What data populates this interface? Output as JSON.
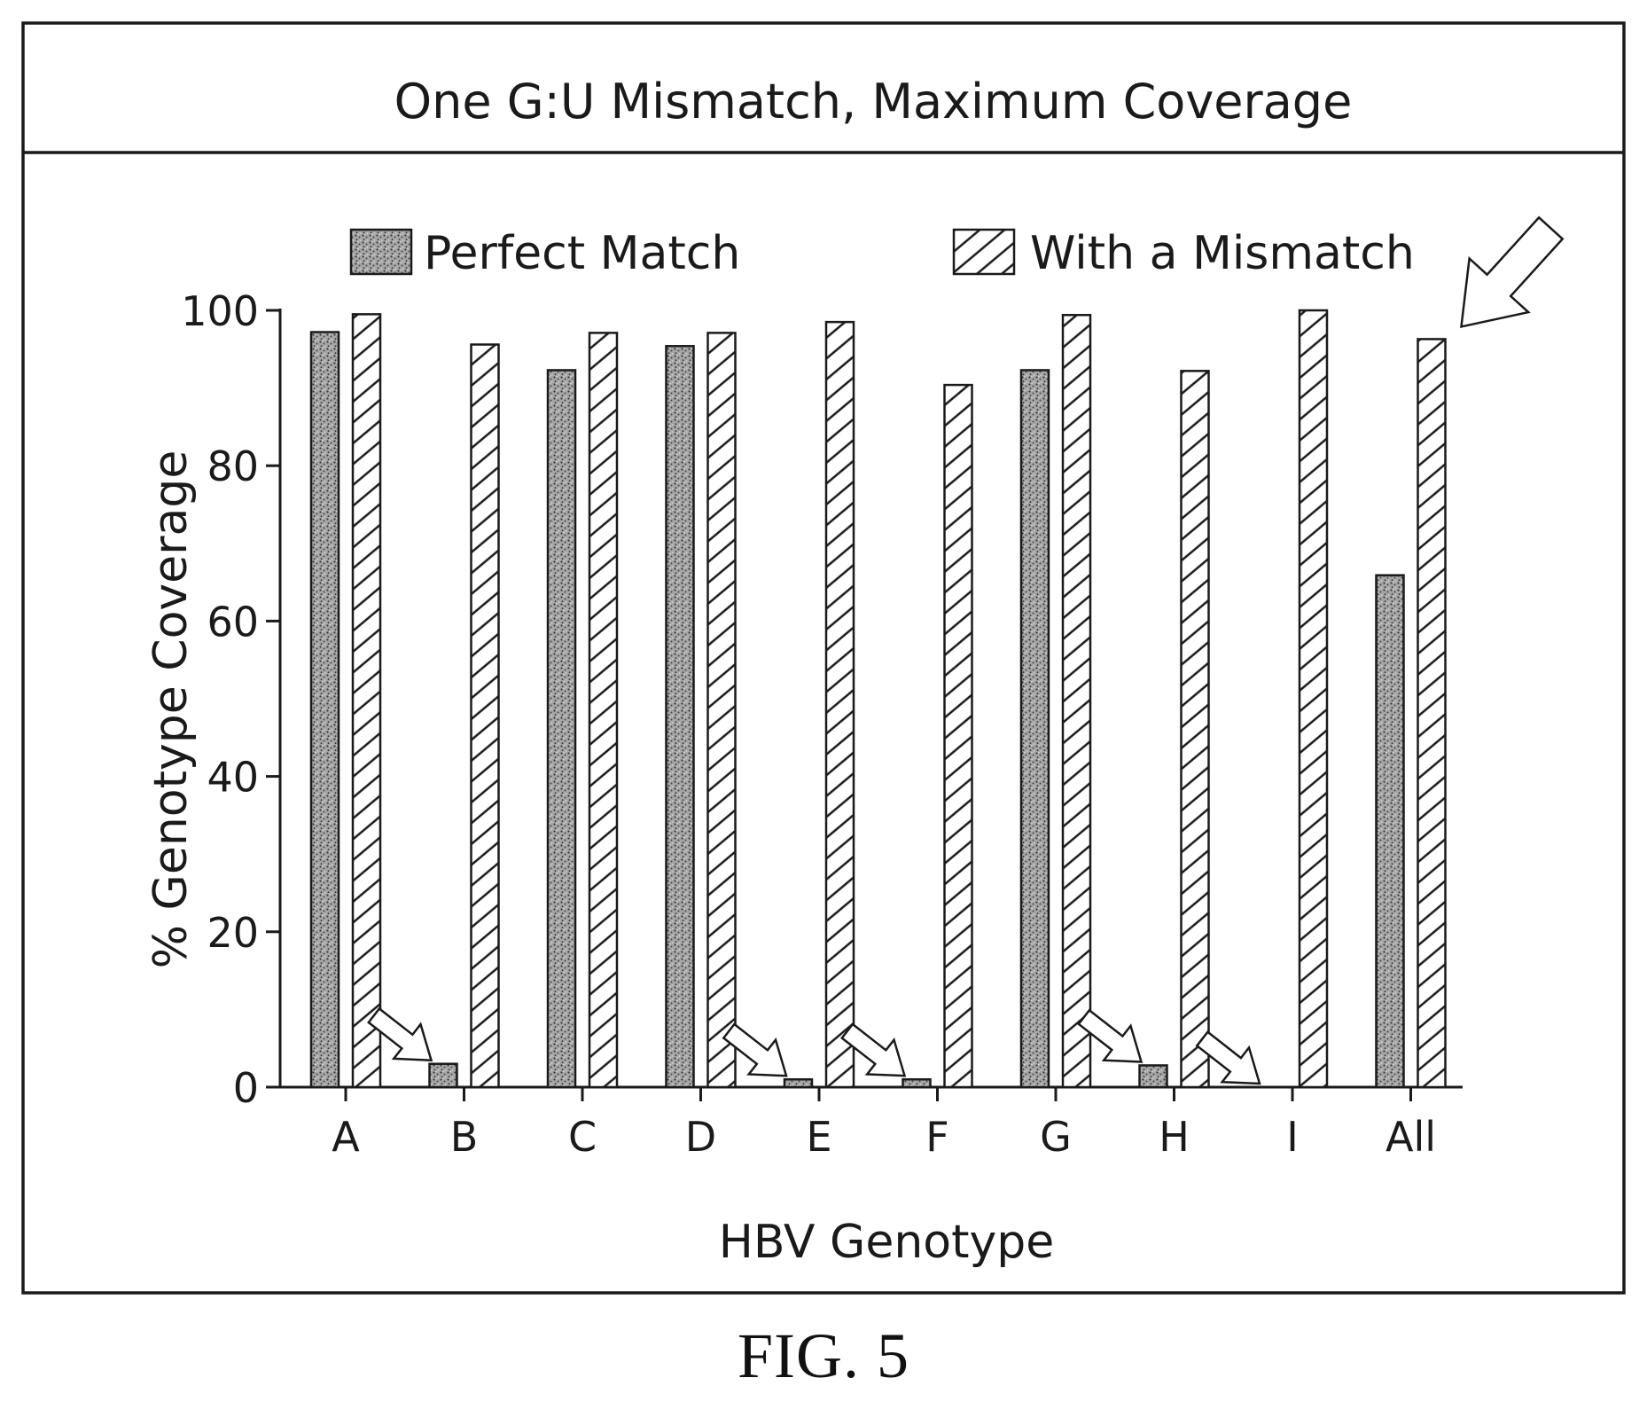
{
  "figure": {
    "caption": "FIG. 5"
  },
  "chart_data": {
    "type": "bar",
    "title": "One G:U Mismatch, Maximum Coverage",
    "xlabel": "HBV Genotype",
    "ylabel": "% Genotype Coverage",
    "categories": [
      "A",
      "B",
      "C",
      "D",
      "E",
      "F",
      "G",
      "H",
      "I",
      "All"
    ],
    "series": [
      {
        "name": "Perfect Match",
        "pattern": "stipple",
        "values": [
          97.2,
          3.0,
          92.3,
          95.4,
          1.0,
          1.0,
          92.3,
          2.8,
          0,
          65.9
        ]
      },
      {
        "name": "With a Mismatch",
        "pattern": "hatch",
        "values": [
          99.5,
          95.6,
          97.1,
          97.1,
          98.5,
          90.4,
          99.4,
          92.2,
          100,
          96.3
        ]
      }
    ],
    "ylim": [
      0,
      100
    ],
    "yticks": [
      0,
      20,
      40,
      60,
      80,
      100
    ],
    "grid": false,
    "legend_position": "top",
    "annotations": [
      {
        "type": "arrow",
        "target": "B",
        "series": "Perfect Match"
      },
      {
        "type": "arrow",
        "target": "E",
        "series": "Perfect Match"
      },
      {
        "type": "arrow",
        "target": "F",
        "series": "Perfect Match"
      },
      {
        "type": "arrow",
        "target": "H",
        "series": "Perfect Match"
      },
      {
        "type": "arrow",
        "target": "I",
        "series": "Perfect Match"
      },
      {
        "type": "arrow",
        "target": "All",
        "series": "With a Mismatch"
      }
    ],
    "colors": {
      "ink": "#1a1a1a",
      "stipple_fill": "#9a9a9a",
      "hatch_fill": "#ffffff"
    }
  }
}
